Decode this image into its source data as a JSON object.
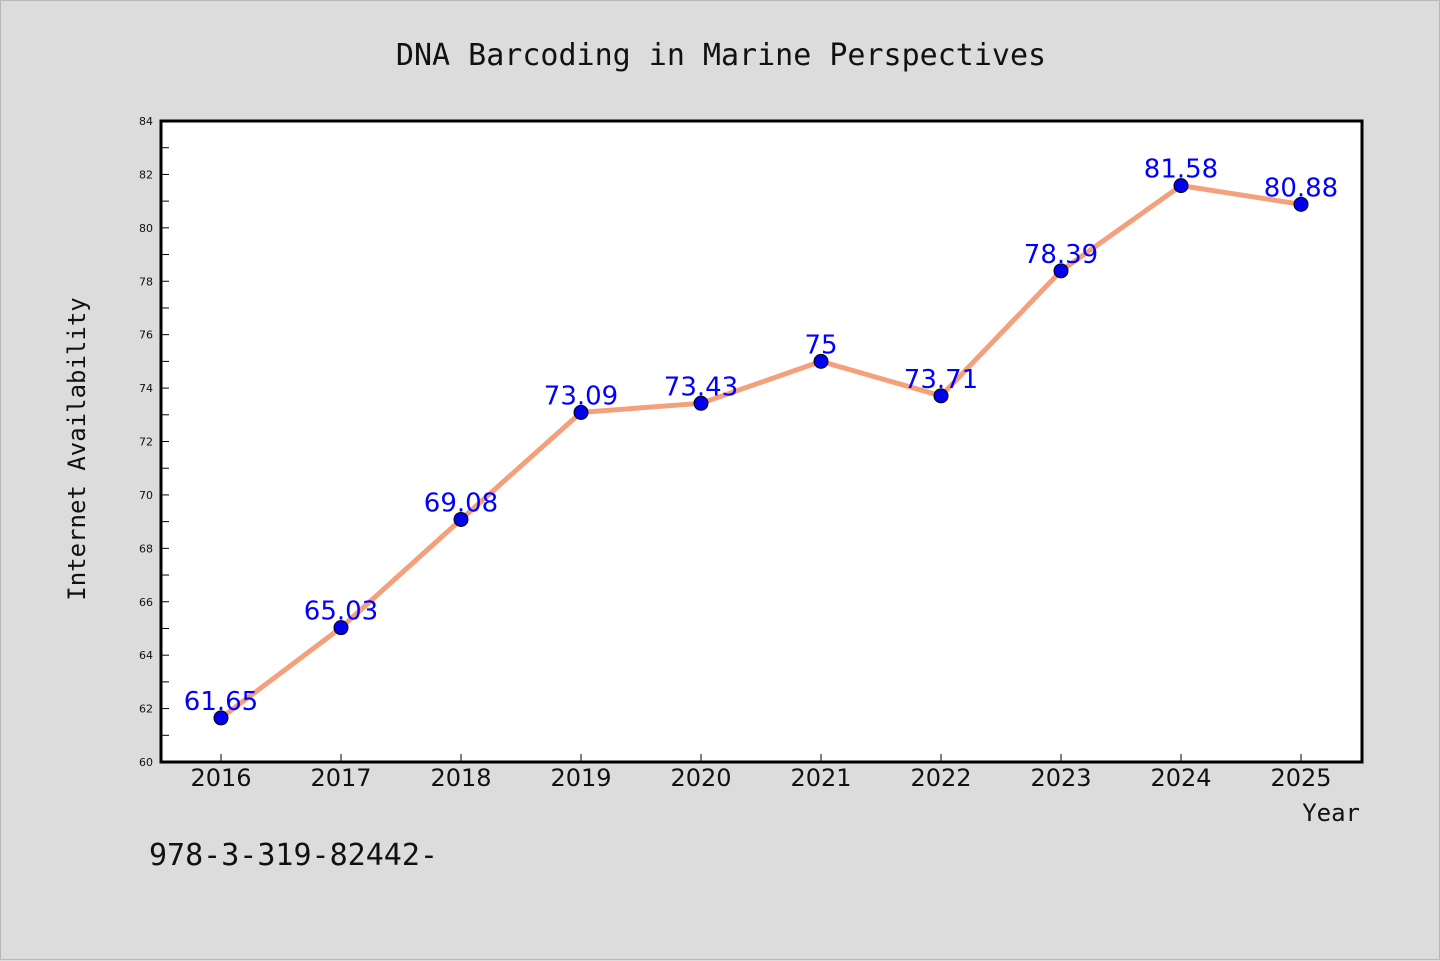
{
  "chart_data": {
    "type": "line",
    "title": "DNA Barcoding in Marine Perspectives",
    "xlabel": "Year",
    "ylabel": "Internet Availability",
    "categories": [
      "2016",
      "2017",
      "2018",
      "2019",
      "2020",
      "2021",
      "2022",
      "2023",
      "2024",
      "2025"
    ],
    "series": [
      {
        "values": [
          61.65,
          65.03,
          69.08,
          73.09,
          73.43,
          75,
          73.71,
          78.39,
          81.58,
          80.88
        ],
        "labels": [
          "61.65",
          "65.03",
          "69.08",
          "73.09",
          "73.43",
          "75",
          "73.71",
          "78.39",
          "81.58",
          "80.88"
        ],
        "line_color": "#f4a07c",
        "marker_color": "#0000ee"
      }
    ],
    "ylim": [
      60,
      84
    ],
    "yticks": [
      "60",
      "62",
      "64",
      "66",
      "68",
      "70",
      "72",
      "74",
      "76",
      "78",
      "80",
      "82",
      "84"
    ],
    "grid": false,
    "legend": "none"
  },
  "footer": {
    "text": "978-3-319-82442-"
  }
}
